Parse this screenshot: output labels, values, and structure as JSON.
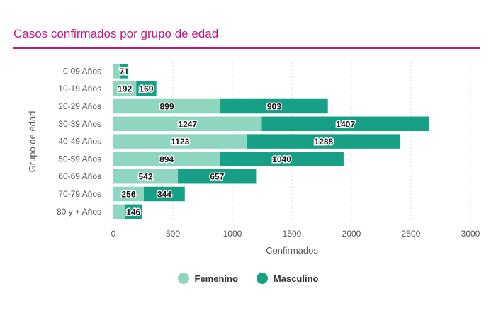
{
  "title": "Casos confirmados por grupo de edad",
  "colors": {
    "femenino": "#8ed6c0",
    "masculino": "#17a085",
    "title": "#c2187a"
  },
  "chart_data": {
    "type": "bar",
    "orientation": "horizontal",
    "stacked": true,
    "title": "Casos confirmados por grupo de edad",
    "xlabel": "Confirmados",
    "ylabel": "Grupo de edad",
    "xlim": [
      0,
      3000
    ],
    "xticks": [
      0,
      500,
      1000,
      1500,
      2000,
      2500,
      3000
    ],
    "grid": true,
    "legend_position": "bottom",
    "categories": [
      "0-09 Años",
      "10-19 Años",
      "20-29 Años",
      "30-39 Años",
      "40-49 Años",
      "50-59 Años",
      "60-69 Años",
      "70-79 Años",
      "80 y + Años"
    ],
    "series": [
      {
        "name": "Femenino",
        "color": "#8ed6c0",
        "values": [
          55,
          192,
          899,
          1247,
          1123,
          894,
          542,
          256,
          95
        ],
        "labels": [
          "",
          "192",
          "899",
          "1247",
          "1123",
          "894",
          "542",
          "256",
          ""
        ]
      },
      {
        "name": "Masculino",
        "color": "#17a085",
        "values": [
          71,
          169,
          903,
          1407,
          1288,
          1040,
          657,
          344,
          146
        ],
        "labels": [
          "71",
          "169",
          "903",
          "1407",
          "1288",
          "1040",
          "657",
          "344",
          "146"
        ]
      }
    ]
  }
}
